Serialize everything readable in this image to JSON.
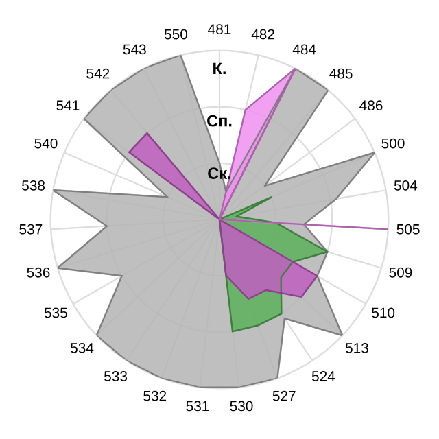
{
  "chart_data": {
    "type": "radar",
    "categories": [
      "481",
      "482",
      "484",
      "485",
      "486",
      "500",
      "504",
      "505",
      "509",
      "510",
      "513",
      "524",
      "527",
      "530",
      "531",
      "532",
      "533",
      "534",
      "535",
      "536",
      "537",
      "538",
      "540",
      "541",
      "542",
      "543",
      "550"
    ],
    "ylim": [
      0,
      3
    ],
    "yticks": [
      {
        "value": 1,
        "label": "Ск."
      },
      {
        "value": 2,
        "label": "Сп."
      },
      {
        "value": 3,
        "label": "К."
      }
    ],
    "grid": true,
    "series": [
      {
        "color": "#b4b4b4",
        "values": [
          1,
          0.5,
          3,
          3,
          1,
          3,
          2.1,
          1.5,
          2,
          2,
          3,
          2.1,
          3,
          3,
          3,
          3,
          3,
          3,
          2,
          3,
          2,
          3,
          1,
          3,
          3,
          3,
          3
        ]
      },
      {
        "color": "#5cb05c",
        "values": [
          0,
          0,
          0,
          0,
          0,
          1,
          0.3,
          1,
          2,
          1.5,
          1.5,
          2,
          2,
          2,
          0,
          0,
          0,
          0,
          0,
          0,
          0,
          0,
          0,
          0,
          0,
          0,
          0
        ]
      },
      {
        "color": "#c060c0",
        "values": [
          0,
          0,
          3,
          0,
          0,
          0,
          0,
          0,
          0,
          2,
          2,
          1.5,
          1.5,
          1,
          0,
          0,
          0,
          0,
          0,
          0,
          0,
          0,
          0,
          2,
          2,
          0,
          0
        ]
      },
      {
        "color": "#f090f0",
        "values": [
          0,
          2,
          3,
          0,
          0,
          0,
          0,
          3,
          0,
          0,
          0,
          0,
          0,
          0,
          0,
          0,
          0,
          0,
          0,
          0,
          0,
          0,
          0,
          0,
          0,
          0,
          0
        ]
      }
    ]
  }
}
